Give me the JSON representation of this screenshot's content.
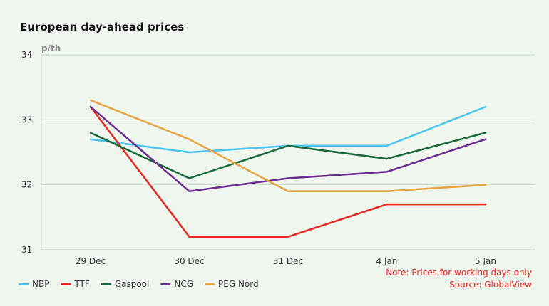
{
  "chart_data": {
    "type": "line",
    "title": "European day-ahead prices",
    "unit": "p/th",
    "categories": [
      "29 Dec",
      "30 Dec",
      "31 Dec",
      "4 Jan",
      "5 Jan"
    ],
    "ylim": [
      31,
      34
    ],
    "yticks": [
      "31",
      "32",
      "33",
      "34"
    ],
    "grid": true,
    "legend_position": "bottom-left",
    "series": [
      {
        "name": "NBP",
        "color": "#49c4ef",
        "values": [
          32.7,
          32.5,
          32.6,
          32.6,
          33.2
        ]
      },
      {
        "name": "TTF",
        "color": "#e8251c",
        "values": [
          33.2,
          31.2,
          31.2,
          31.7,
          31.7
        ]
      },
      {
        "name": "Gaspool",
        "color": "#17693a",
        "values": [
          32.8,
          32.1,
          32.6,
          32.4,
          32.8
        ]
      },
      {
        "name": "NCG",
        "color": "#6b2c91",
        "values": [
          33.2,
          31.9,
          32.1,
          32.2,
          32.7
        ]
      },
      {
        "name": "PEG Nord",
        "color": "#e8a33c",
        "values": [
          33.3,
          32.7,
          31.9,
          31.9,
          32.0
        ]
      }
    ],
    "notes": [
      "Note: Prices for working days only",
      "Source: GlobalView"
    ]
  }
}
